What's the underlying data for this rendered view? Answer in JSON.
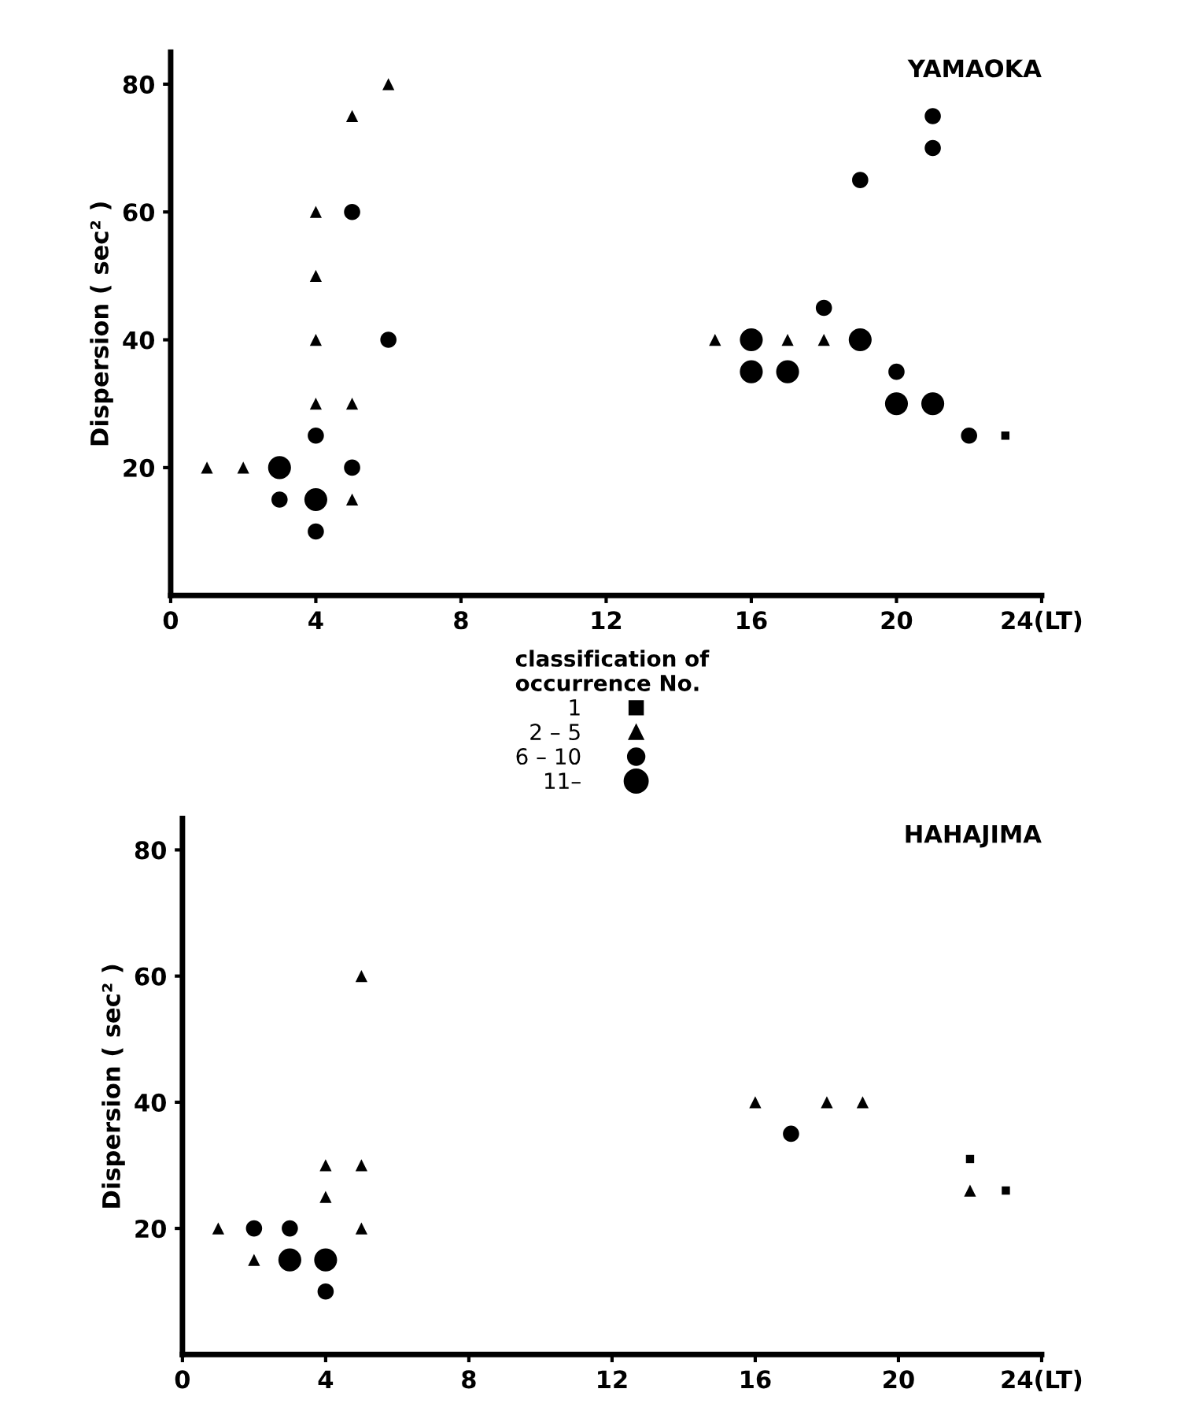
{
  "chart_data": [
    {
      "type": "scatter",
      "title": "YAMAOKA",
      "ylabel": "Dispersion ( sec² )",
      "xlim": [
        0,
        24
      ],
      "ylim": [
        0,
        85
      ],
      "xticks": [
        0,
        4,
        8,
        12,
        {
          "value": 24,
          "label": "24(LT)"
        },
        16,
        20
      ],
      "yticks": [
        20,
        40,
        60,
        80
      ],
      "grid": false,
      "legend": false,
      "series": [
        {
          "marker": "square",
          "color": "#000000",
          "x": [
            23
          ],
          "values": [
            25
          ]
        },
        {
          "marker": "triangle",
          "color": "#000000",
          "x": [
            1,
            2,
            4,
            4,
            4,
            4,
            5,
            6,
            5,
            5,
            15,
            17,
            18
          ],
          "values": [
            20,
            20,
            30,
            40,
            50,
            60,
            75,
            80,
            30,
            15,
            40,
            40,
            40
          ]
        },
        {
          "marker": "circle",
          "color": "#000000",
          "x": [
            3,
            4,
            4,
            5,
            6,
            5,
            18,
            20,
            22,
            19,
            21,
            21
          ],
          "values": [
            15,
            10,
            25,
            60,
            40,
            20,
            45,
            35,
            25,
            65,
            75,
            70
          ]
        },
        {
          "marker": "circle",
          "color": "#000000",
          "x": [
            3,
            4,
            16,
            19,
            16,
            17,
            20,
            21
          ],
          "values": [
            20,
            15,
            40,
            40,
            35,
            35,
            30,
            30
          ]
        }
      ]
    },
    {
      "type": "scatter",
      "title": "HAHAJIMA",
      "ylabel": "Dispersion ( sec² )",
      "legend_title": "classification of\noccurrence No.",
      "xlim": [
        0,
        24
      ],
      "ylim": [
        0,
        85
      ],
      "xticks": [
        0,
        4,
        8,
        12,
        16,
        20,
        {
          "value": 24,
          "label": "24(LT)"
        }
      ],
      "yticks": [
        20,
        40,
        60,
        80
      ],
      "grid": false,
      "legend": "top",
      "series": [
        {
          "name": "1",
          "marker": "square",
          "color": "#000000",
          "x": [
            22,
            23
          ],
          "values": [
            31,
            26
          ]
        },
        {
          "name": "2 – 5",
          "marker": "triangle",
          "color": "#000000",
          "x": [
            1,
            2,
            4,
            4,
            5,
            5,
            5,
            16,
            18,
            19,
            22
          ],
          "values": [
            20,
            15,
            25,
            30,
            30,
            20,
            60,
            40,
            40,
            40,
            26
          ]
        },
        {
          "name": "6 – 10",
          "marker": "circle",
          "color": "#000000",
          "x": [
            2,
            3,
            4,
            17
          ],
          "values": [
            20,
            20,
            10,
            35
          ]
        },
        {
          "name": "11–",
          "marker": "circle",
          "color": "#000000",
          "x": [
            3,
            4
          ],
          "values": [
            15,
            15
          ]
        }
      ]
    }
  ]
}
